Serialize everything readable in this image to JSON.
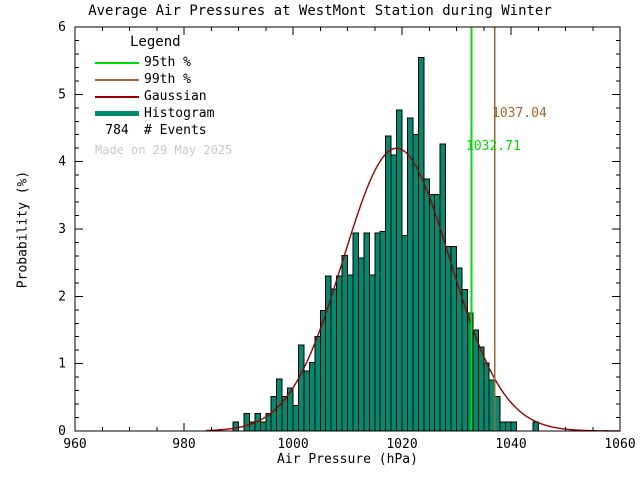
{
  "chart_data": {
    "type": "bar",
    "title": "Average Air Pressures at WestMont Station during Winter",
    "xlabel": "Air Pressure (hPa)",
    "ylabel": "Probability (%)",
    "xlim": [
      960,
      1060
    ],
    "ylim": [
      0,
      6
    ],
    "x_ticks": [
      960,
      980,
      1000,
      1020,
      1040,
      1060
    ],
    "y_ticks": [
      0,
      1,
      2,
      3,
      4,
      5,
      6
    ],
    "x_minor_tick_step": 5,
    "y_minor_tick_step": 0.2,
    "grid": false,
    "legend_position": "upper-left",
    "histogram": {
      "bin_width": 1,
      "bin_start": 988,
      "probabilities_pct": [
        0.0,
        0.13,
        0.0,
        0.26,
        0.13,
        0.26,
        0.13,
        0.26,
        0.51,
        0.77,
        0.51,
        0.64,
        0.38,
        1.28,
        0.89,
        1.02,
        1.4,
        1.79,
        2.3,
        2.11,
        2.3,
        2.61,
        2.32,
        2.94,
        2.57,
        2.94,
        2.32,
        2.94,
        2.96,
        4.38,
        4.1,
        4.77,
        2.9,
        4.65,
        4.4,
        5.55,
        3.74,
        3.51,
        3.51,
        4.26,
        2.74,
        2.74,
        2.42,
        2.1,
        1.75,
        1.5,
        1.25,
        1.01,
        0.76,
        0.51,
        0.13,
        0.13,
        0.13,
        0.0,
        0.0,
        0.0,
        0.13
      ]
    },
    "gaussian_fit": {
      "mean_hpa": 1019,
      "sigma_hpa": 9.8,
      "peak_pct": 4.2
    },
    "percentile_95_hpa": 1032.71,
    "percentile_99_hpa": 1037.04,
    "n_events": 784
  },
  "legend": {
    "title": "Legend",
    "items": [
      {
        "label": "95th %",
        "swatch": "line",
        "color": "#00dd00"
      },
      {
        "label": "99th %",
        "swatch": "line",
        "color": "#a4652e"
      },
      {
        "label": "Gaussian",
        "swatch": "line",
        "color": "#9b0000"
      },
      {
        "label": "Histogram",
        "swatch": "thick",
        "color": "#008a6e"
      }
    ],
    "events_value": "784",
    "events_label": "# Events"
  },
  "annotations": {
    "p99": {
      "text": "1037.04",
      "color": "#a4652e"
    },
    "p95": {
      "text": "1032.71",
      "color": "#00dd00"
    }
  },
  "watermark": "Made on 29 May 2025",
  "colors": {
    "histogram_fill": "#008a6e",
    "histogram_outline": "#000000",
    "gaussian": "#9b0000",
    "p95_line": "#00dd00",
    "p99_line": "#a4652e",
    "axis": "#000000",
    "watermark": "#c9c9c9"
  }
}
